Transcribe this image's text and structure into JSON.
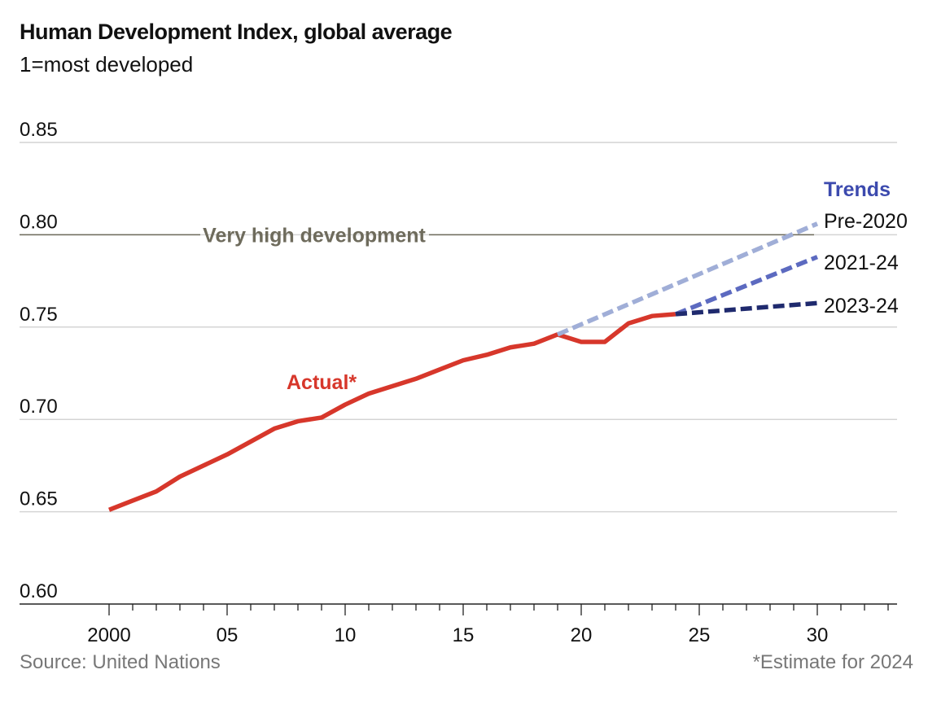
{
  "chart_data": {
    "type": "line",
    "title": "Human Development Index, global average",
    "subtitle": "1=most developed",
    "source": "Source: United Nations",
    "footnote": "*Estimate for 2024",
    "ylim": [
      0.6,
      0.85
    ],
    "xlim": [
      2000,
      2030
    ],
    "yticks": [
      "0.60",
      "0.65",
      "0.70",
      "0.75",
      "0.80",
      "0.85"
    ],
    "ytick_values": [
      0.6,
      0.65,
      0.7,
      0.75,
      0.8,
      0.85
    ],
    "xticks": [
      "2000",
      "05",
      "10",
      "15",
      "20",
      "25",
      "30"
    ],
    "xtick_values": [
      2000,
      2005,
      2010,
      2015,
      2020,
      2025,
      2030
    ],
    "grid": true,
    "reference_line": {
      "value": 0.8,
      "label": "Very high development",
      "color": "#6e6b5c"
    },
    "trends_heading": "Trends",
    "trends_color": "#3c4aae",
    "series": [
      {
        "name": "Actual*",
        "color": "#d7372b",
        "style": "solid",
        "x": [
          2000,
          2001,
          2002,
          2003,
          2004,
          2005,
          2006,
          2007,
          2008,
          2009,
          2010,
          2011,
          2012,
          2013,
          2014,
          2015,
          2016,
          2017,
          2018,
          2019,
          2020,
          2021,
          2022,
          2023,
          2024
        ],
        "y": [
          0.651,
          0.656,
          0.661,
          0.669,
          0.675,
          0.681,
          0.688,
          0.695,
          0.699,
          0.701,
          0.708,
          0.714,
          0.718,
          0.722,
          0.727,
          0.732,
          0.735,
          0.739,
          0.741,
          0.746,
          0.742,
          0.742,
          0.752,
          0.756,
          0.757
        ]
      },
      {
        "name": "Pre-2020",
        "color": "#a0aed7",
        "style": "dashed",
        "x": [
          2019,
          2030
        ],
        "y": [
          0.746,
          0.806
        ]
      },
      {
        "name": "2021-24",
        "color": "#5c6ac0",
        "style": "dashed",
        "x": [
          2024,
          2030
        ],
        "y": [
          0.757,
          0.788
        ]
      },
      {
        "name": "2023-24",
        "color": "#1f2a6e",
        "style": "dashed",
        "x": [
          2024,
          2030
        ],
        "y": [
          0.757,
          0.763
        ]
      }
    ]
  }
}
